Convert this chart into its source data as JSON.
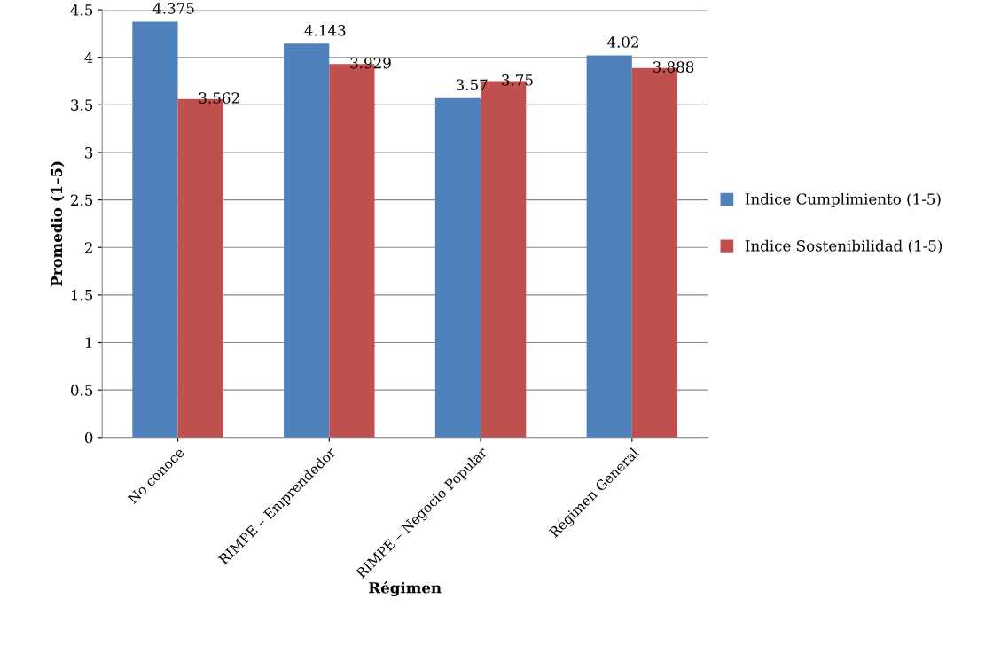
{
  "chart_data": {
    "type": "bar",
    "xlabel": "Régimen",
    "ylabel": "Promedio (1–5)",
    "categories": [
      "No conoce",
      "RIMPE – Emprendedor",
      "RIMPE – Negocio Popular",
      "Régimen General"
    ],
    "series": [
      {
        "name": "Indice Cumplimiento (1-5)",
        "color": "#4f81bd",
        "values": [
          4.375,
          4.143,
          3.57,
          4.02
        ]
      },
      {
        "name": "Indice Sostenibilidad (1-5)",
        "color": "#c0504d",
        "values": [
          3.562,
          3.929,
          3.75,
          3.888
        ]
      }
    ],
    "ylim": [
      0,
      4.5
    ],
    "yticks": [
      0,
      0.5,
      1,
      1.5,
      2,
      2.5,
      3,
      3.5,
      4,
      4.5
    ],
    "grid": "y",
    "legend": "right",
    "data_labels": true
  }
}
